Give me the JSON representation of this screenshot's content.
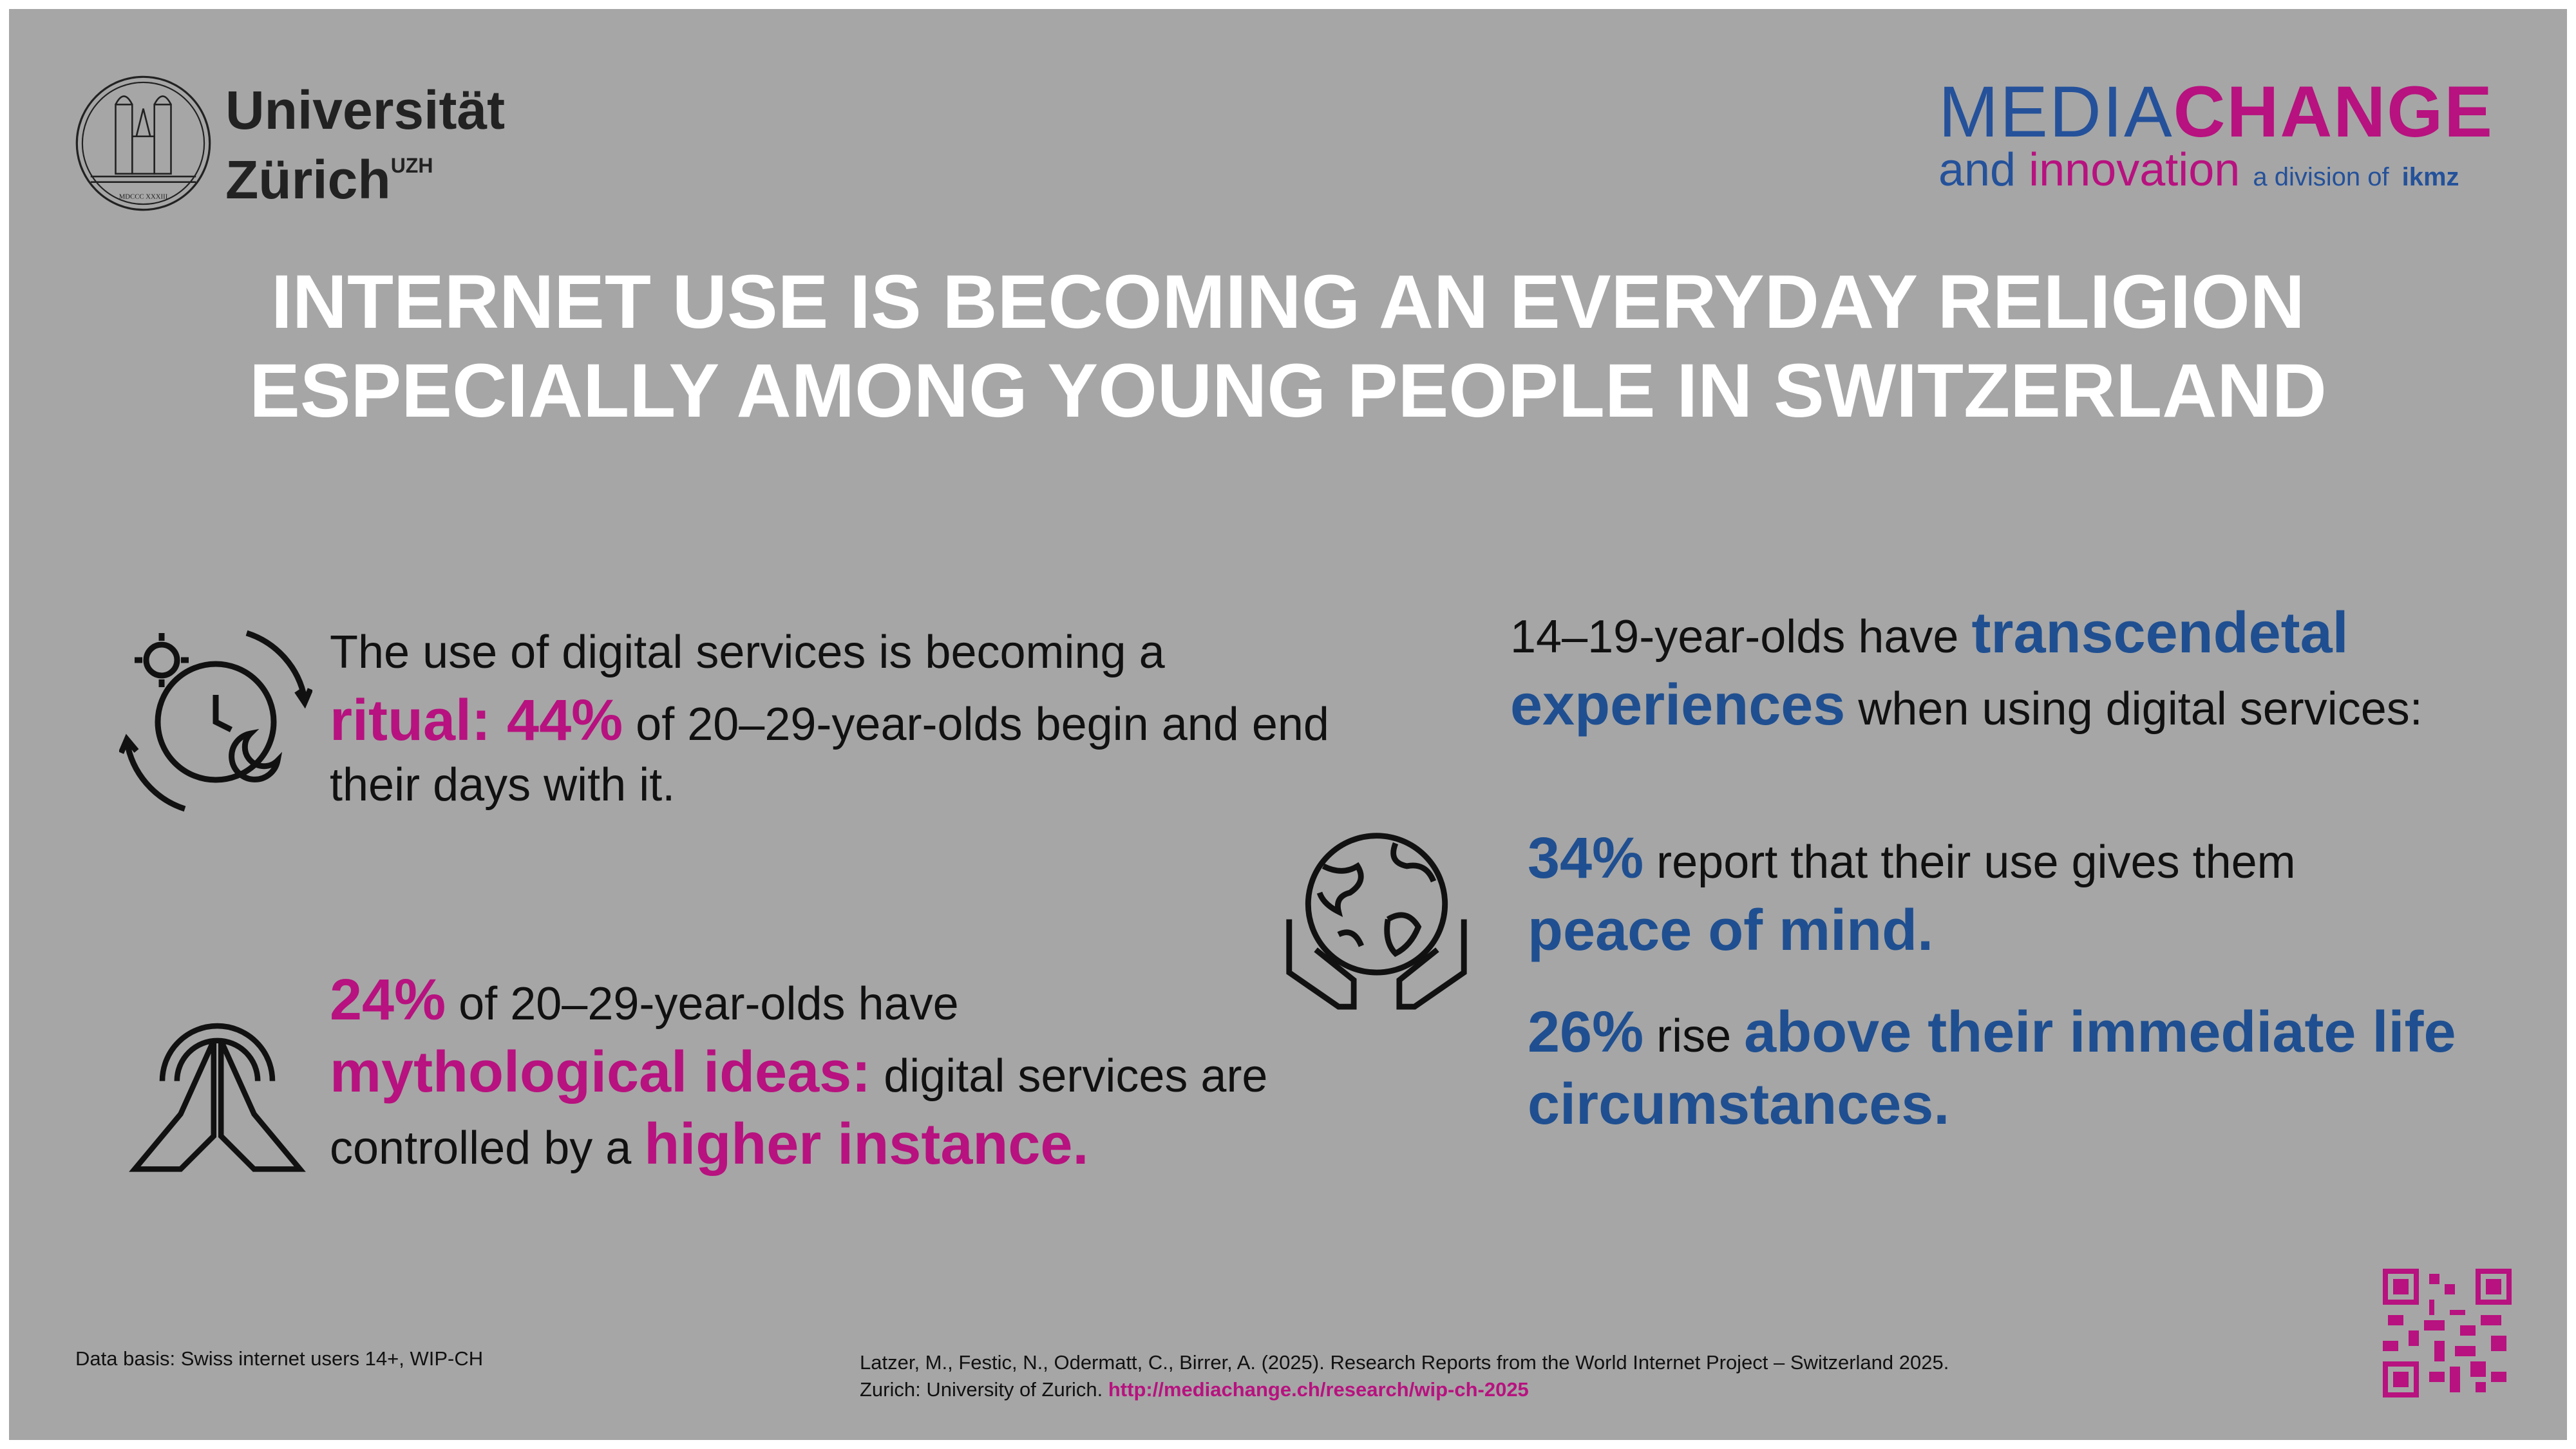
{
  "header": {
    "university_line1": "Universität",
    "university_line2": "Zürich",
    "university_sup": "UZH",
    "seal_text": "UNIVERSITAS TURICENSIS MDCCC XXXIII",
    "brand": {
      "media": "MEDIA",
      "change": "CHANGE",
      "and": "and",
      "innovation": "innovation",
      "division": "a division of",
      "ikmz": "ikmz"
    }
  },
  "title": {
    "line1": "INTERNET USE IS BECOMING AN EVERYDAY RELIGION",
    "line2": "ESPECIALLY AMONG YOUNG PEOPLE IN SWITZERLAND"
  },
  "ritual": {
    "t1": "The use of digital services is becoming a",
    "em1": "ritual: 44%",
    "t2": " of 20–29-year-olds begin and end",
    "t3": "their days with it."
  },
  "myth": {
    "em1": "24%",
    "t1": " of 20–29-year-olds have",
    "em2": "mythological ideas:",
    "t2": " digital services are",
    "t3": "controlled by a ",
    "em3": "higher instance."
  },
  "transcend": {
    "t1": "14–19-year-olds have ",
    "em1": "transcendetal",
    "em2": "experiences",
    "t2": " when using digital services:"
  },
  "peace": {
    "em1": "34%",
    "t1": " report that their use gives them",
    "em2": "peace of mind."
  },
  "rise": {
    "em1": "26%",
    "t1": " rise ",
    "em2": "above their immediate life",
    "em3": "circumstances."
  },
  "footer": {
    "data_basis": "Data basis: Swiss internet users 14+, WIP-CH",
    "citation": "Latzer, M., Festic, N., Odermatt, C., Birrer, A. (2025). Research Reports from the World Internet Project – Switzerland 2025.",
    "citation2": "Zurich: University of Zurich. ",
    "link": "http://mediachange.ch/research/wip-ch-2025"
  },
  "colors": {
    "background": "#a6a6a6",
    "magenta": "#b7127f",
    "blue": "#1f4f90",
    "title": "#ffffff"
  },
  "icons": [
    "uzh-seal",
    "clock-sun-moon-icon",
    "praying-hands-icon",
    "globe-hands-icon",
    "qr-code"
  ]
}
